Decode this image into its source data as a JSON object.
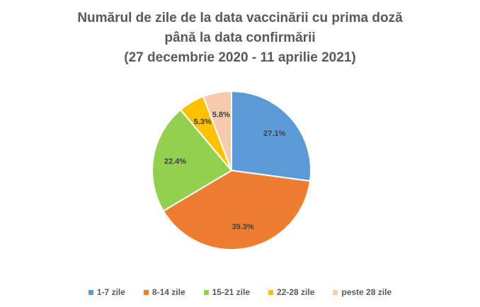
{
  "chart_data": {
    "type": "pie",
    "title_lines": [
      "Numărul de zile de la data vaccinării cu prima doză",
      "până la data confirmării",
      "(27 decembrie 2020 - 11 aprilie 2021)"
    ],
    "categories": [
      "1-7 zile",
      "8-14 zile",
      "15-21 zile",
      "22-28 zile",
      "peste 28 zile"
    ],
    "values": [
      27.1,
      39.3,
      22.4,
      5.3,
      5.8
    ],
    "labels": [
      "27.1%",
      "39.3%",
      "22.4%",
      "5.3%",
      "5.8%"
    ],
    "colors": [
      "#5B9BD5",
      "#ED7D31",
      "#92D050",
      "#FFC000",
      "#F8CBAD"
    ],
    "legend_position": "bottom"
  }
}
